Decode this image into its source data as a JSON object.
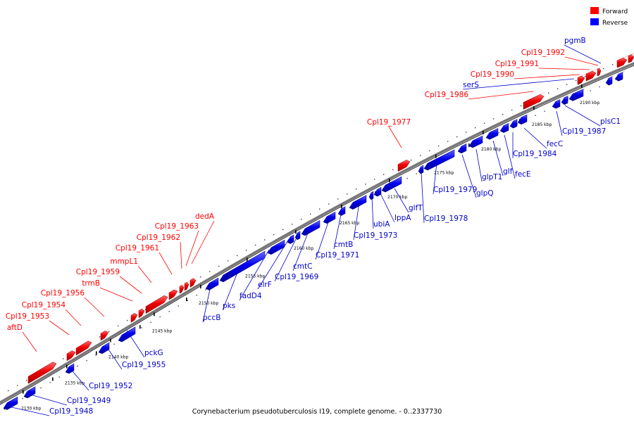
{
  "legend": {
    "forward": {
      "label": "Forward",
      "color": "#ff0000"
    },
    "reverse": {
      "label": "Reverse",
      "color": "#0000ff"
    }
  },
  "caption": "Corynebacterium pseudotuberculosis I19, complete genome. - 0..2337730",
  "tick_unit": "kbp",
  "ticks": [
    2130,
    2135,
    2140,
    2145,
    2150,
    2155,
    2160,
    2165,
    2170,
    2175,
    2180,
    2185,
    2190
  ],
  "forward_labels": [
    "aftD",
    "Cpl19_1953",
    "Cpl19_1954",
    "Cpl19_1956",
    "trmB",
    "Cpl19_1959",
    "mmpL1",
    "Cpl19_1961",
    "Cpl19_1962",
    "Cpl19_1963",
    "dedA",
    "Cpl19_1977",
    "Cpl19_1986",
    "Cpl19_1990",
    "Cpl19_1991",
    "Cpl19_1992"
  ],
  "reverse_labels": [
    "Cpl19_1948",
    "Cpl19_1949",
    "Cpl19_1952",
    "Cpl19_1955",
    "pckG",
    "pccB",
    "pks",
    "fadD4",
    "elrF",
    "Cpl19_1969",
    "cmtC",
    "Cpl19_1971",
    "cmtB",
    "Cpl19_1973",
    "ubiA",
    "lppA",
    "glfT",
    "Cpl19_1978",
    "Cpl19_1979",
    "glpQ",
    "glpT1",
    "glf",
    "fecE",
    "Cpl19_1984",
    "fecC",
    "Cpl19_1987",
    "plsC1",
    "serS",
    "pgmB"
  ]
}
